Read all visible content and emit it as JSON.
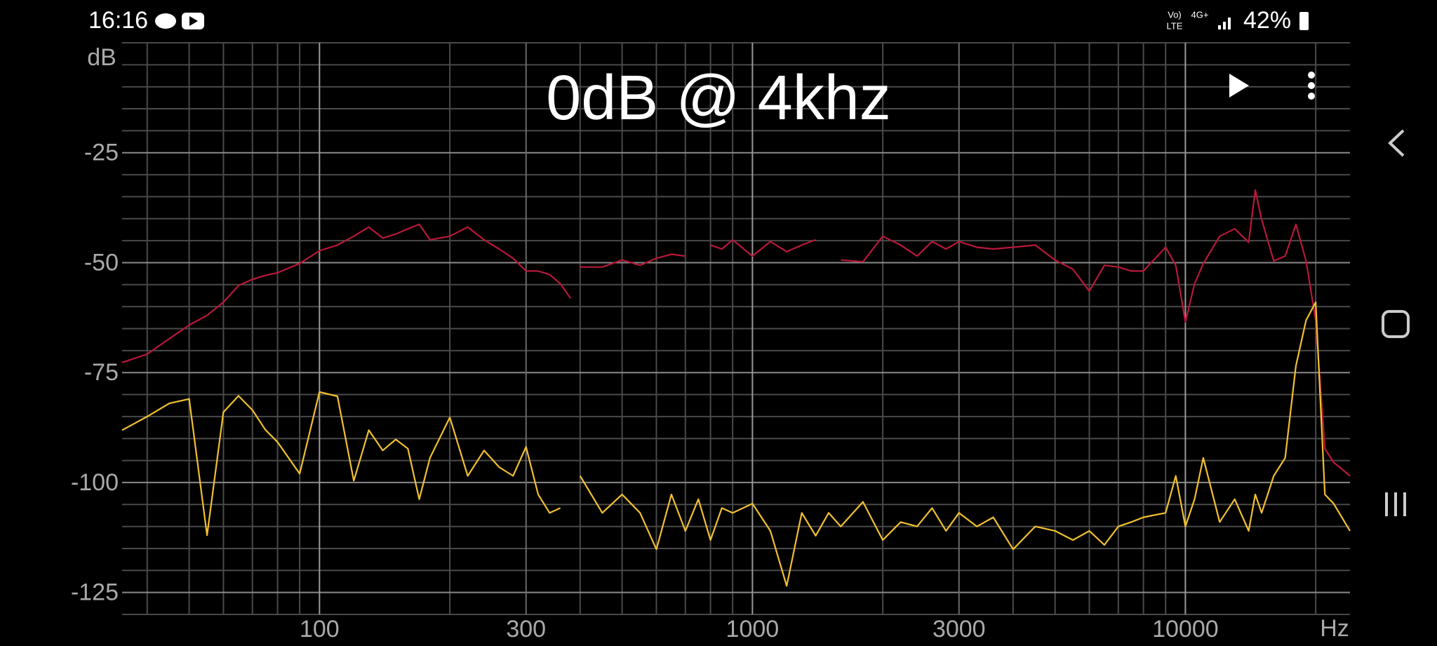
{
  "status_bar": {
    "time": "16:16",
    "network": [
      "Vo)",
      "LTE",
      "4G+"
    ],
    "battery": "42%"
  },
  "chart_data": {
    "type": "line",
    "title": "0dB @ 4khz",
    "x_label": "Hz",
    "y_label": "dB",
    "xscale": "log",
    "xlim": [
      35,
      24000
    ],
    "ylim": [
      -130,
      0
    ],
    "xticks": [
      100,
      300,
      1000,
      3000,
      10000
    ],
    "x_minor_ticks": [
      40,
      50,
      60,
      70,
      80,
      90,
      200,
      400,
      500,
      600,
      700,
      800,
      900,
      2000,
      4000,
      5000,
      6000,
      7000,
      8000,
      9000,
      20000
    ],
    "yticks": [
      -25,
      -50,
      -75,
      -100,
      -125
    ],
    "y_minor_ticks": [
      0,
      -5,
      -10,
      -15,
      -20,
      -30,
      -35,
      -40,
      -45,
      -55,
      -60,
      -65,
      -70,
      -80,
      -85,
      -90,
      -95,
      -105,
      -110,
      -115,
      -120,
      -130
    ],
    "grid": true,
    "x": [
      35,
      40,
      45,
      50,
      55,
      60,
      65,
      70,
      75,
      80,
      90,
      100,
      110,
      120,
      130,
      140,
      150,
      160,
      170,
      180,
      200,
      220,
      240,
      260,
      280,
      300,
      320,
      340,
      360,
      380,
      390,
      400,
      450,
      500,
      550,
      600,
      650,
      700,
      750,
      800,
      850,
      900,
      1000,
      1100,
      1200,
      1300,
      1400,
      1500,
      1600,
      1800,
      2000,
      2200,
      2400,
      2600,
      2800,
      3000,
      3300,
      3600,
      4000,
      4500,
      5000,
      5500,
      6000,
      6500,
      7000,
      7500,
      8000,
      9000,
      9500,
      10000,
      10500,
      11000,
      12000,
      13000,
      14000,
      14500,
      15000,
      16000,
      17000,
      18000,
      19000,
      20000,
      21000,
      22000,
      24000
    ],
    "series": [
      {
        "color": "#b8183a",
        "values": [
          -72.7,
          -70.8,
          -67.3,
          -64.2,
          -62,
          -59,
          -55.2,
          -53.8,
          -52.9,
          -52.3,
          -50.2,
          -47.3,
          -46,
          -44,
          -41.9,
          -44.4,
          -43.5,
          -42.3,
          -41.3,
          -44.8,
          -44,
          -41.9,
          -44.8,
          -46.9,
          -49,
          -51.9,
          -51.9,
          -52.7,
          -54.8,
          -58.1,
          null,
          -51,
          -51,
          -49.4,
          -50.6,
          -49,
          -48.1,
          -48.5,
          null,
          -46,
          -46.9,
          -44.8,
          -48.5,
          -45.2,
          -47.5,
          -46,
          -44.8,
          null,
          -49.4,
          -49.8,
          -44,
          -46,
          -48.5,
          -45.2,
          -46.9,
          -45.2,
          -46.5,
          -46.9,
          -46.5,
          -46,
          -49.4,
          -51.5,
          -56.5,
          -50.6,
          -51,
          -51.9,
          -51.9,
          -46.5,
          -50.6,
          -63.5,
          -54.8,
          -50.2,
          -44,
          -42.3,
          -45.4,
          -33.5,
          -40.2,
          -49.6,
          -48.5,
          -41.3,
          -49.6,
          -63.1,
          -92.3,
          -95.4,
          -98.5
        ]
      },
      {
        "color": "#f0c030",
        "values": [
          -88.1,
          -85,
          -82,
          -81,
          -112,
          -84,
          -80.3,
          -83.5,
          -88,
          -90.8,
          -98,
          -79.4,
          -80.4,
          -99.6,
          -88.1,
          -92.7,
          -90.2,
          -92.3,
          -103.8,
          -94.4,
          -85.2,
          -98.5,
          -92.7,
          -96.5,
          -98.5,
          -91.9,
          -102.7,
          -106.9,
          -105.8,
          null,
          null,
          -98.5,
          -106.9,
          -102.7,
          -106.9,
          -115.2,
          -102.7,
          -111,
          -103.8,
          -113.1,
          -105.8,
          -106.9,
          -104.8,
          -111,
          -123.5,
          -106.9,
          -112.1,
          -106.9,
          -110,
          -104.4,
          -113.1,
          -109,
          -110,
          -105.8,
          -111,
          -106.9,
          -110,
          -107.9,
          -115.2,
          -110,
          -111,
          -113.1,
          -111,
          -114.2,
          -110,
          -109,
          -107.9,
          -106.9,
          -98.5,
          -110,
          -103.8,
          -94.4,
          -109,
          -103.8,
          -111,
          -102.7,
          -106.9,
          -98.5,
          -94.4,
          -73.5,
          -63.1,
          -59,
          -102.7,
          -104.8,
          -111
        ]
      }
    ]
  }
}
